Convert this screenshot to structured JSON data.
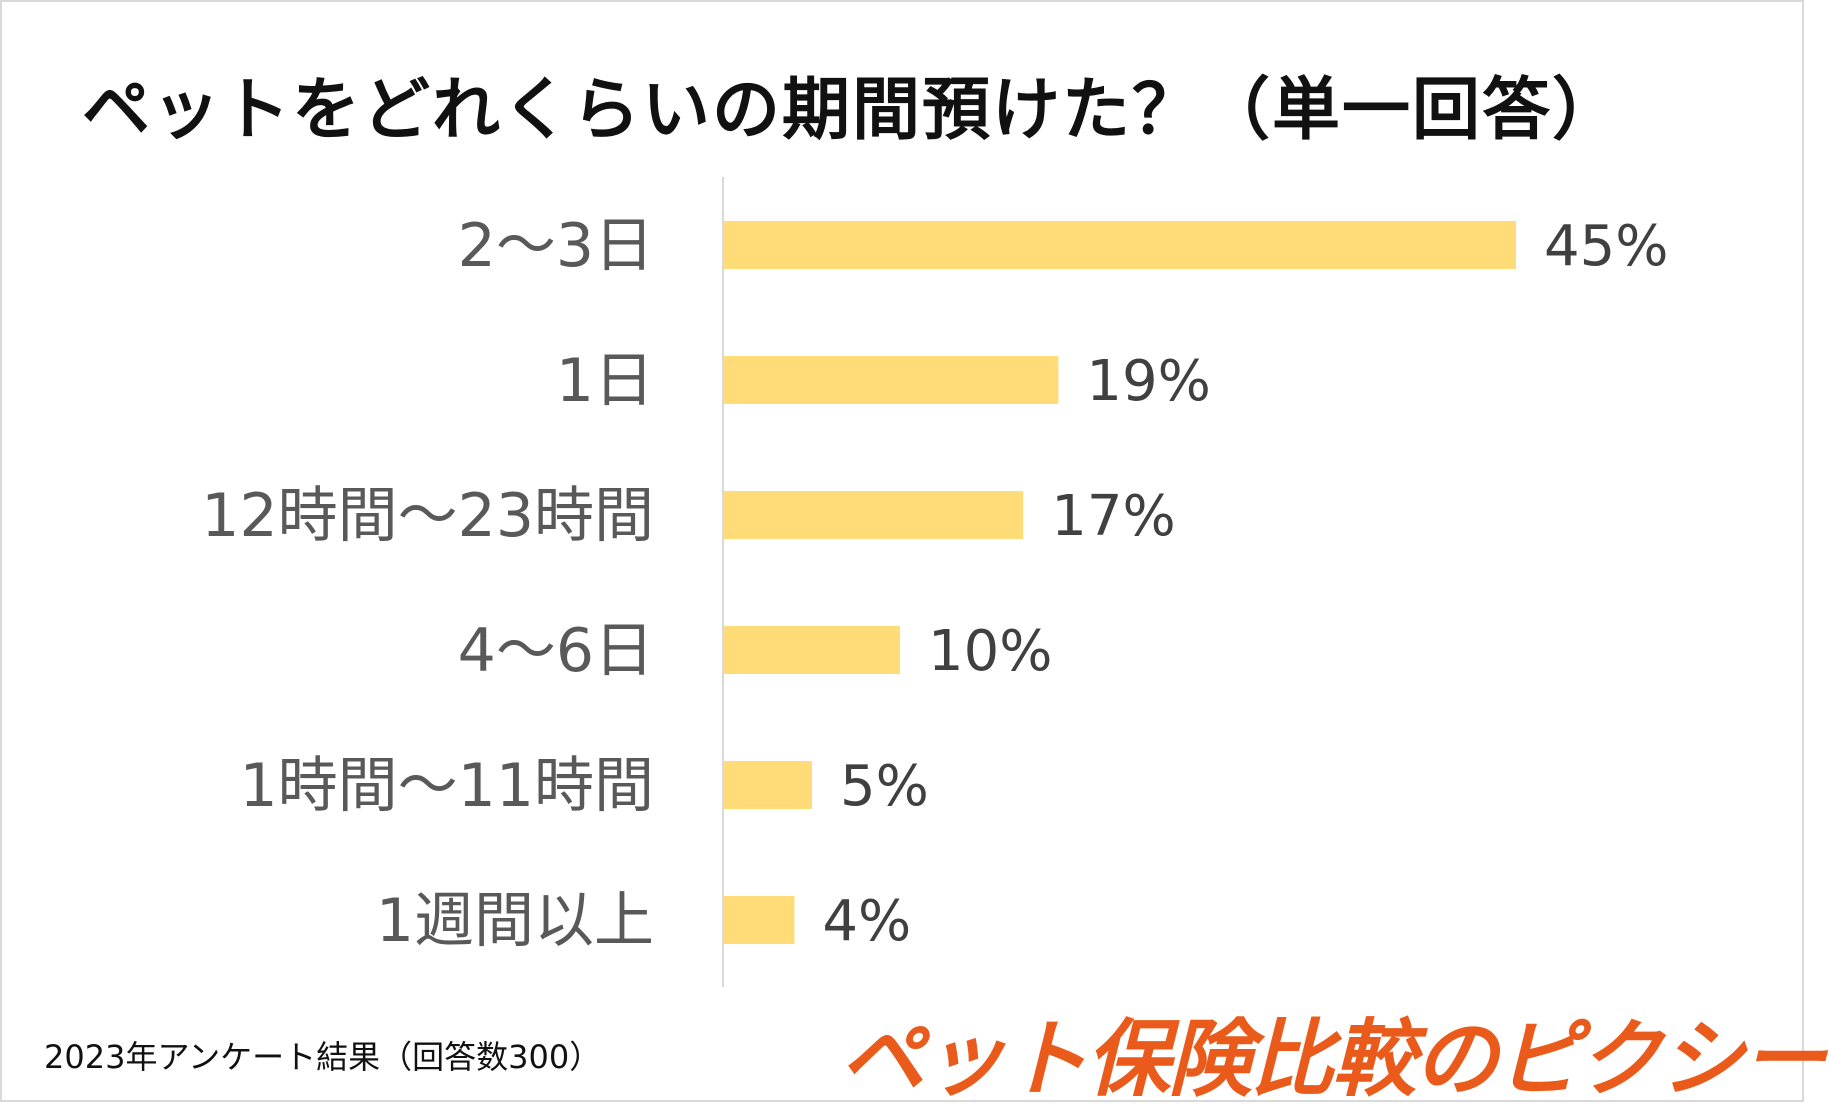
{
  "chart_data": {
    "type": "bar",
    "orientation": "horizontal",
    "title": "ペットをどれくらいの期間預けた？（単一回答）",
    "categories": [
      "2〜3日",
      "1日",
      "12時間〜23時間",
      "4〜6日",
      "1時間〜11時間",
      "1週間以上"
    ],
    "values": [
      45,
      19,
      17,
      10,
      5,
      4
    ],
    "value_labels": [
      "45%",
      "19%",
      "17%",
      "10%",
      "5%",
      "4%"
    ],
    "unit": "%",
    "xlim": [
      0,
      50
    ],
    "grid": false,
    "legend": "none",
    "bar_color": "#ffdc78"
  },
  "footnote": "2023年アンケート結果（回答数300）",
  "brand": "ペット保険比較のピクシー",
  "colors": {
    "brand": "#ea5b1b",
    "axis": "#d9d9d9"
  }
}
